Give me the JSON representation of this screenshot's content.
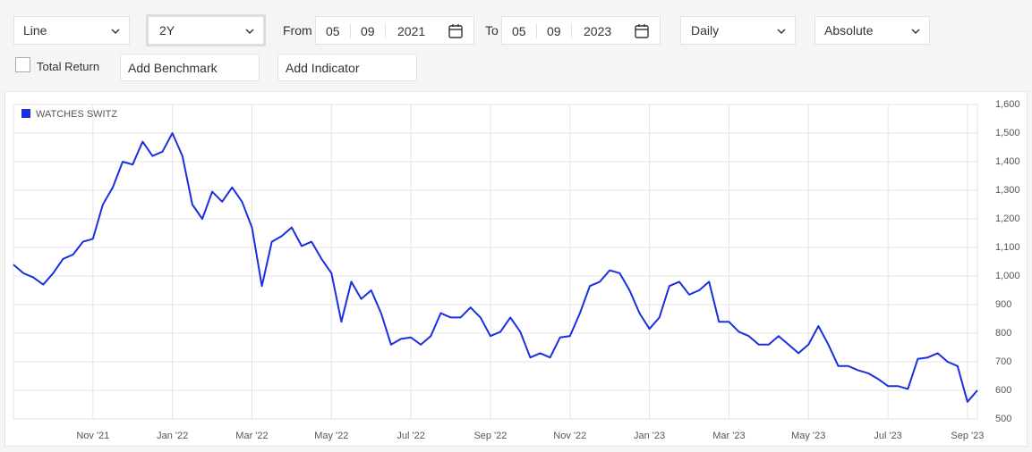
{
  "toolbar": {
    "chart_type": "Line",
    "period": "2Y",
    "from_label": "From",
    "from_day": "05",
    "from_month": "09",
    "from_year": "2021",
    "to_label": "To",
    "to_day": "05",
    "to_month": "09",
    "to_year": "2023",
    "frequency": "Daily",
    "mode": "Absolute",
    "total_return": "Total Return",
    "add_benchmark": "Add Benchmark",
    "add_indicator": "Add Indicator"
  },
  "chart_data": {
    "type": "line",
    "categories": [
      null,
      null,
      null,
      null,
      null,
      null,
      null,
      null,
      "Nov '21",
      null,
      null,
      null,
      null,
      null,
      null,
      null,
      "Jan '22",
      null,
      null,
      null,
      null,
      null,
      null,
      null,
      "Mar '22",
      null,
      null,
      null,
      null,
      null,
      null,
      null,
      "May '22",
      null,
      null,
      null,
      null,
      null,
      null,
      null,
      "Jul '22",
      null,
      null,
      null,
      null,
      null,
      null,
      null,
      "Sep '22",
      null,
      null,
      null,
      null,
      null,
      null,
      null,
      "Nov '22",
      null,
      null,
      null,
      null,
      null,
      null,
      null,
      "Jan '23",
      null,
      null,
      null,
      null,
      null,
      null,
      null,
      "Mar '23",
      null,
      null,
      null,
      null,
      null,
      null,
      null,
      "May '23",
      null,
      null,
      null,
      null,
      null,
      null,
      null,
      "Jul '23",
      null,
      null,
      null,
      null,
      null,
      null,
      null,
      "Sep '23",
      null
    ],
    "series": [
      {
        "name": "WATCHES SWITZ",
        "color": "#1a2fe0",
        "values": [
          1040,
          1010,
          995,
          970,
          1010,
          1060,
          1075,
          1120,
          1130,
          1250,
          1310,
          1400,
          1390,
          1470,
          1420,
          1435,
          1500,
          1420,
          1250,
          1200,
          1295,
          1260,
          1310,
          1260,
          1170,
          965,
          1120,
          1140,
          1170,
          1105,
          1120,
          1060,
          1010,
          840,
          980,
          920,
          950,
          870,
          760,
          780,
          785,
          760,
          790,
          870,
          855,
          855,
          890,
          855,
          790,
          805,
          855,
          805,
          715,
          730,
          715,
          785,
          790,
          870,
          965,
          980,
          1020,
          1010,
          950,
          870,
          815,
          855,
          965,
          980,
          935,
          950,
          980,
          840,
          840,
          805,
          790,
          760,
          760,
          790,
          760,
          730,
          760,
          825,
          760,
          685,
          685,
          670,
          660,
          640,
          615,
          615,
          605,
          710,
          715,
          730,
          700,
          685,
          560,
          600
        ]
      }
    ],
    "ylim": [
      500,
      1600
    ],
    "yticks": [
      500,
      600,
      700,
      800,
      900,
      {
        "value": 1000,
        "label": "1,000"
      },
      {
        "value": 1100,
        "label": "1,100"
      },
      {
        "value": 1200,
        "label": "1,200"
      },
      {
        "value": 1300,
        "label": "1,300"
      },
      {
        "value": 1400,
        "label": "1,400"
      },
      {
        "value": 1500,
        "label": "1,500"
      },
      {
        "value": 1600,
        "label": "1,600"
      }
    ],
    "grid": true,
    "legend": "top-left"
  }
}
